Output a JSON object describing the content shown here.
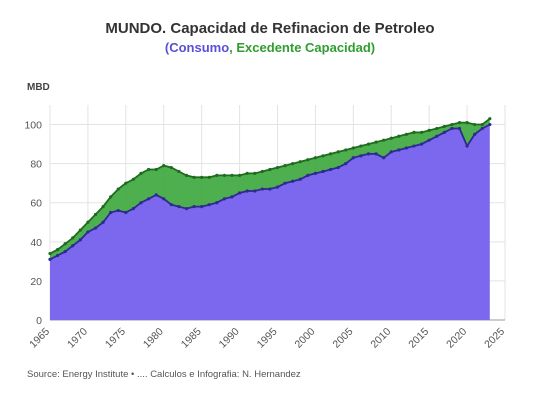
{
  "header": {
    "title": "MUNDO. Capacidad de Refinacion de Petroleo",
    "subtitle_open": "(",
    "subtitle_consumo": "Consumo",
    "subtitle_sep": ", ",
    "subtitle_excedente": "Excedente Capacidad",
    "subtitle_close": ")"
  },
  "unit_label": "MBD",
  "source": "Source: Energy Institute • .... Calculos e Infografia: N. Hernandez",
  "colors": {
    "consumo_fill": "#7b68ee",
    "consumo_line": "#2e2a8f",
    "excedente_fill": "#3aa63a",
    "excedente_line": "#1f6b1f",
    "grid": "#e3e3e3"
  },
  "chart_data": {
    "type": "area",
    "title": "MUNDO. Capacidad de Refinacion de Petroleo",
    "subtitle": "(Consumo, Excedente Capacidad)",
    "ylabel": "MBD",
    "xlabel": "",
    "xlim": [
      1965,
      2025
    ],
    "ylim": [
      0,
      110
    ],
    "yticks": [
      0,
      20,
      40,
      60,
      80,
      100
    ],
    "xticks": [
      1965,
      1970,
      1975,
      1980,
      1985,
      1990,
      1995,
      2000,
      2005,
      2010,
      2015,
      2020,
      2025
    ],
    "grid": true,
    "x": [
      1965,
      1966,
      1967,
      1968,
      1969,
      1970,
      1971,
      1972,
      1973,
      1974,
      1975,
      1976,
      1977,
      1978,
      1979,
      1980,
      1981,
      1982,
      1983,
      1984,
      1985,
      1986,
      1987,
      1988,
      1989,
      1990,
      1991,
      1992,
      1993,
      1994,
      1995,
      1996,
      1997,
      1998,
      1999,
      2000,
      2001,
      2002,
      2003,
      2004,
      2005,
      2006,
      2007,
      2008,
      2009,
      2010,
      2011,
      2012,
      2013,
      2014,
      2015,
      2016,
      2017,
      2018,
      2019,
      2020,
      2021,
      2022,
      2023
    ],
    "series": [
      {
        "name": "Consumo",
        "values": [
          31,
          33,
          35,
          38,
          41,
          45,
          47,
          50,
          55,
          56,
          55,
          57,
          60,
          62,
          64,
          62,
          59,
          58,
          57,
          58,
          58,
          59,
          60,
          62,
          63,
          65,
          66,
          66,
          67,
          67,
          68,
          70,
          71,
          72,
          74,
          75,
          76,
          77,
          78,
          80,
          83,
          84,
          85,
          85,
          83,
          86,
          87,
          88,
          89,
          90,
          92,
          94,
          96,
          98,
          98,
          89,
          95,
          98,
          100
        ]
      },
      {
        "name": "Capacidad",
        "values": [
          34,
          36,
          39,
          42,
          46,
          50,
          54,
          58,
          63,
          67,
          70,
          72,
          75,
          77,
          77,
          79,
          78,
          76,
          74,
          73,
          73,
          73,
          74,
          74,
          74,
          74,
          75,
          75,
          76,
          77,
          78,
          79,
          80,
          81,
          82,
          83,
          84,
          85,
          86,
          87,
          88,
          89,
          90,
          91,
          92,
          93,
          94,
          95,
          96,
          96,
          97,
          98,
          99,
          100,
          101,
          101,
          100,
          100,
          103
        ]
      }
    ]
  }
}
